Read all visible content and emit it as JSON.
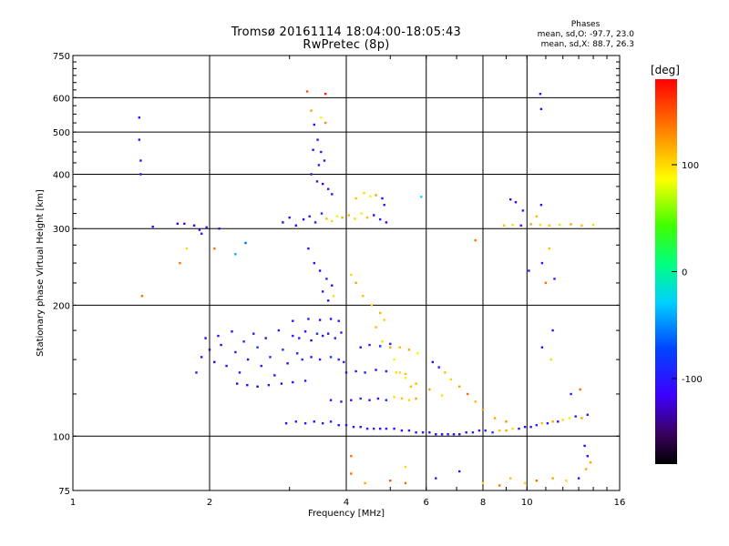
{
  "header": {
    "title": "Tromsø 20161114 18:04:00-18:05:43",
    "subtitle": "RwPretec (8p)"
  },
  "phases": {
    "label": "Phases",
    "o_stat": "mean, sd,O: -97.7, 23.0",
    "x_stat": "mean, sd,X: 88.7, 26.3"
  },
  "colorbar": {
    "title": "[deg]",
    "ticks": [
      {
        "value": 100,
        "label": "100"
      },
      {
        "value": 0,
        "label": "0"
      },
      {
        "value": -100,
        "label": "-100"
      }
    ],
    "range": [
      -180,
      180
    ]
  },
  "chart_data": {
    "type": "scatter",
    "title": "Tromsø 20161114 18:04:00-18:05:43",
    "subtitle": "RwPretec (8p)",
    "xlabel": "Frequency [MHz]",
    "ylabel": "Stationary phase Virtual Height [km]",
    "xscale": "log",
    "yscale": "log",
    "xlim": [
      1,
      16
    ],
    "ylim": [
      75,
      750
    ],
    "xticks": [
      {
        "value": 1,
        "label": "1"
      },
      {
        "value": 2,
        "label": "2"
      },
      {
        "value": 4,
        "label": "4"
      },
      {
        "value": 6,
        "label": "6"
      },
      {
        "value": 8,
        "label": "8"
      },
      {
        "value": 10,
        "label": "10"
      },
      {
        "value": 16,
        "label": "16"
      }
    ],
    "yticks": [
      {
        "value": 75,
        "label": "75"
      },
      {
        "value": 100,
        "label": "100"
      },
      {
        "value": 200,
        "label": "200"
      },
      {
        "value": 300,
        "label": "300"
      },
      {
        "value": 400,
        "label": "400"
      },
      {
        "value": 500,
        "label": "500"
      },
      {
        "value": 600,
        "label": "600"
      },
      {
        "value": 750,
        "label": "750"
      }
    ],
    "grid": true,
    "color_scale": "phase [deg], -180 to 180",
    "point_columns": [
      "freq_mhz",
      "height_km",
      "phase_deg"
    ],
    "points": [
      [
        1.4,
        540,
        -110
      ],
      [
        1.4,
        480,
        -110
      ],
      [
        1.41,
        430,
        -105
      ],
      [
        1.41,
        400,
        -110
      ],
      [
        1.42,
        210,
        140
      ],
      [
        1.5,
        303,
        -110
      ],
      [
        1.7,
        308,
        -120
      ],
      [
        1.76,
        308,
        -110
      ],
      [
        1.85,
        305,
        -130
      ],
      [
        1.9,
        298,
        -110
      ],
      [
        1.92,
        292,
        -100
      ],
      [
        1.97,
        302,
        -110
      ],
      [
        2.1,
        300,
        -100
      ],
      [
        1.72,
        250,
        140
      ],
      [
        1.78,
        270,
        100
      ],
      [
        2.05,
        270,
        140
      ],
      [
        2.28,
        262,
        -40
      ],
      [
        2.4,
        278,
        -60
      ],
      [
        1.87,
        140,
        -100
      ],
      [
        1.92,
        152,
        -110
      ],
      [
        1.96,
        168,
        -120
      ],
      [
        2.0,
        158,
        -130
      ],
      [
        2.05,
        148,
        -120
      ],
      [
        2.09,
        170,
        -110
      ],
      [
        2.12,
        162,
        -125
      ],
      [
        2.18,
        145,
        -110
      ],
      [
        2.24,
        174,
        -115
      ],
      [
        2.28,
        156,
        -100
      ],
      [
        2.33,
        140,
        -110
      ],
      [
        2.38,
        165,
        -90
      ],
      [
        2.43,
        150,
        -105
      ],
      [
        2.5,
        172,
        -100
      ],
      [
        2.55,
        160,
        -80
      ],
      [
        2.6,
        145,
        -100
      ],
      [
        2.66,
        168,
        -115
      ],
      [
        2.72,
        152,
        -90
      ],
      [
        2.78,
        138,
        -110
      ],
      [
        2.84,
        175,
        -100
      ],
      [
        2.9,
        158,
        -85
      ],
      [
        2.97,
        147,
        -120
      ],
      [
        3.05,
        170,
        -100
      ],
      [
        3.12,
        155,
        -95
      ],
      [
        2.3,
        132,
        -125
      ],
      [
        2.42,
        131,
        -120
      ],
      [
        2.55,
        130,
        -130
      ],
      [
        2.7,
        131,
        -110
      ],
      [
        2.88,
        132,
        -120
      ],
      [
        3.05,
        133,
        -110
      ],
      [
        3.25,
        134,
        -100
      ],
      [
        3.15,
        168,
        -100
      ],
      [
        3.25,
        174,
        -110
      ],
      [
        3.35,
        166,
        -120
      ],
      [
        3.45,
        172,
        -90
      ],
      [
        3.55,
        170,
        -100
      ],
      [
        3.65,
        172,
        -110
      ],
      [
        3.78,
        168,
        -95
      ],
      [
        3.9,
        173,
        -100
      ],
      [
        3.2,
        150,
        -90
      ],
      [
        3.35,
        152,
        -110
      ],
      [
        3.5,
        150,
        -100
      ],
      [
        3.7,
        152,
        -80
      ],
      [
        3.85,
        150,
        -90
      ],
      [
        3.95,
        148,
        -100
      ],
      [
        3.05,
        184,
        -110
      ],
      [
        3.3,
        186,
        -100
      ],
      [
        3.5,
        185,
        -120
      ],
      [
        3.7,
        186,
        -110
      ],
      [
        3.85,
        184,
        -105
      ],
      [
        2.9,
        310,
        -120
      ],
      [
        3.0,
        318,
        -115
      ],
      [
        3.1,
        305,
        -110
      ],
      [
        3.22,
        315,
        -120
      ],
      [
        3.32,
        320,
        -100
      ],
      [
        3.42,
        310,
        -105
      ],
      [
        3.53,
        325,
        -90
      ],
      [
        3.62,
        316,
        110
      ],
      [
        3.72,
        312,
        100
      ],
      [
        3.82,
        320,
        80
      ],
      [
        3.92,
        318,
        120
      ],
      [
        4.05,
        322,
        115
      ],
      [
        4.18,
        316,
        100
      ],
      [
        4.32,
        325,
        95
      ],
      [
        4.45,
        318,
        110
      ],
      [
        4.6,
        322,
        -110
      ],
      [
        4.75,
        315,
        -100
      ],
      [
        4.9,
        310,
        -120
      ],
      [
        4.2,
        352,
        110
      ],
      [
        4.38,
        362,
        100
      ],
      [
        4.52,
        356,
        80
      ],
      [
        4.65,
        358,
        120
      ],
      [
        4.8,
        352,
        -110
      ],
      [
        4.85,
        340,
        -100
      ],
      [
        3.35,
        560,
        120
      ],
      [
        3.4,
        520,
        -110
      ],
      [
        3.46,
        480,
        -100
      ],
      [
        3.52,
        450,
        -105
      ],
      [
        3.58,
        430,
        -110
      ],
      [
        3.52,
        540,
        90
      ],
      [
        3.6,
        525,
        130
      ],
      [
        3.28,
        620,
        150
      ],
      [
        3.6,
        612,
        170
      ],
      [
        3.35,
        400,
        -110
      ],
      [
        3.45,
        385,
        -100
      ],
      [
        3.55,
        380,
        -120
      ],
      [
        3.65,
        370,
        -95
      ],
      [
        3.72,
        360,
        -110
      ],
      [
        3.38,
        455,
        -115
      ],
      [
        3.48,
        420,
        -100
      ],
      [
        3.3,
        270,
        -110
      ],
      [
        3.4,
        250,
        -100
      ],
      [
        3.5,
        240,
        -120
      ],
      [
        3.62,
        230,
        -90
      ],
      [
        3.72,
        222,
        -110
      ],
      [
        3.55,
        215,
        -100
      ],
      [
        3.65,
        205,
        -110
      ],
      [
        3.75,
        210,
        100
      ],
      [
        4.1,
        235,
        100
      ],
      [
        4.2,
        225,
        120
      ],
      [
        4.35,
        210,
        110
      ],
      [
        4.55,
        200,
        100
      ],
      [
        4.75,
        192,
        115
      ],
      [
        4.85,
        185,
        105
      ],
      [
        4.65,
        178,
        110
      ],
      [
        4.8,
        165,
        100
      ],
      [
        5.0,
        160,
        120
      ],
      [
        5.1,
        150,
        80
      ],
      [
        5.25,
        140,
        100
      ],
      [
        5.4,
        136,
        90
      ],
      [
        5.55,
        130,
        110
      ],
      [
        5.7,
        132,
        100
      ],
      [
        3.7,
        121,
        -105
      ],
      [
        3.9,
        120,
        -100
      ],
      [
        4.1,
        121,
        -110
      ],
      [
        4.3,
        122,
        -95
      ],
      [
        4.5,
        121,
        -100
      ],
      [
        4.7,
        122,
        -110
      ],
      [
        4.9,
        121,
        -90
      ],
      [
        5.1,
        123,
        100
      ],
      [
        5.3,
        122,
        110
      ],
      [
        5.5,
        121,
        100
      ],
      [
        5.7,
        122,
        120
      ],
      [
        4.0,
        140,
        -110
      ],
      [
        4.2,
        141,
        -100
      ],
      [
        4.4,
        140,
        -95
      ],
      [
        4.65,
        142,
        -110
      ],
      [
        4.9,
        141,
        -100
      ],
      [
        5.15,
        140,
        100
      ],
      [
        5.4,
        139,
        110
      ],
      [
        4.3,
        160,
        -110
      ],
      [
        4.5,
        162,
        -100
      ],
      [
        4.75,
        161,
        -90
      ],
      [
        5.0,
        163,
        -105
      ],
      [
        5.25,
        160,
        110
      ],
      [
        5.5,
        158,
        120
      ],
      [
        5.75,
        155,
        90
      ],
      [
        6.2,
        148,
        -110
      ],
      [
        6.4,
        144,
        -100
      ],
      [
        6.6,
        140,
        110
      ],
      [
        6.8,
        135,
        100
      ],
      [
        7.1,
        130,
        120
      ],
      [
        7.4,
        125,
        140
      ],
      [
        7.7,
        120,
        110
      ],
      [
        8.0,
        115,
        120
      ],
      [
        8.5,
        110,
        120
      ],
      [
        9.0,
        108,
        130
      ],
      [
        5.7,
        132,
        110
      ],
      [
        6.1,
        128,
        120
      ],
      [
        6.5,
        124,
        100
      ],
      [
        2.95,
        107,
        -110
      ],
      [
        3.1,
        108,
        -100
      ],
      [
        3.25,
        107,
        -105
      ],
      [
        3.4,
        108,
        -110
      ],
      [
        3.55,
        107,
        -100
      ],
      [
        3.7,
        108,
        -95
      ],
      [
        3.85,
        106,
        -110
      ],
      [
        4.0,
        106,
        -100
      ],
      [
        4.15,
        105,
        -105
      ],
      [
        4.3,
        105,
        -110
      ],
      [
        4.45,
        104,
        -100
      ],
      [
        4.6,
        104,
        -95
      ],
      [
        4.75,
        104,
        -110
      ],
      [
        4.9,
        104,
        -100
      ],
      [
        5.1,
        104,
        -105
      ],
      [
        5.3,
        103,
        -110
      ],
      [
        5.5,
        103,
        -100
      ],
      [
        5.7,
        102,
        -100
      ],
      [
        5.9,
        102,
        -110
      ],
      [
        6.1,
        102,
        -105
      ],
      [
        6.3,
        101,
        -100
      ],
      [
        6.5,
        101,
        -110
      ],
      [
        6.7,
        101,
        -100
      ],
      [
        6.9,
        101,
        -105
      ],
      [
        7.1,
        101,
        -110
      ],
      [
        7.35,
        102,
        -100
      ],
      [
        7.6,
        102,
        -95
      ],
      [
        7.85,
        103,
        -110
      ],
      [
        8.1,
        103,
        -100
      ],
      [
        8.4,
        102,
        -80
      ],
      [
        8.7,
        103,
        110
      ],
      [
        9.0,
        103,
        120
      ],
      [
        9.3,
        104,
        100
      ],
      [
        9.6,
        104,
        -100
      ],
      [
        9.9,
        105,
        -110
      ],
      [
        10.2,
        105,
        -100
      ],
      [
        10.5,
        106,
        -90
      ],
      [
        10.8,
        107,
        110
      ],
      [
        11.1,
        107,
        -100
      ],
      [
        11.4,
        108,
        120
      ],
      [
        11.7,
        108,
        -110
      ],
      [
        12.0,
        109,
        100
      ],
      [
        12.4,
        110,
        80
      ],
      [
        12.8,
        111,
        -100
      ],
      [
        13.2,
        110,
        120
      ],
      [
        13.6,
        112,
        -100
      ],
      [
        8.9,
        305,
        110
      ],
      [
        9.3,
        306,
        100
      ],
      [
        9.7,
        305,
        -110
      ],
      [
        10.2,
        307,
        120
      ],
      [
        10.7,
        306,
        100
      ],
      [
        11.2,
        305,
        110
      ],
      [
        11.8,
        306,
        100
      ],
      [
        12.5,
        307,
        120
      ],
      [
        13.2,
        305,
        110
      ],
      [
        14.0,
        306,
        100
      ],
      [
        9.2,
        350,
        -110
      ],
      [
        9.8,
        330,
        -100
      ],
      [
        10.5,
        320,
        110
      ],
      [
        10.1,
        240,
        -110
      ],
      [
        10.8,
        250,
        -100
      ],
      [
        11.2,
        270,
        110
      ],
      [
        11.5,
        230,
        -100
      ],
      [
        10.8,
        160,
        -110
      ],
      [
        11.3,
        150,
        100
      ],
      [
        10.7,
        612,
        -110
      ],
      [
        10.75,
        565,
        -110
      ],
      [
        9.45,
        345,
        -110
      ],
      [
        10.75,
        340,
        -110
      ],
      [
        11.0,
        225,
        140
      ],
      [
        11.4,
        175,
        -100
      ],
      [
        12.5,
        125,
        -100
      ],
      [
        13.1,
        128,
        140
      ],
      [
        13.4,
        95,
        -120
      ],
      [
        13.6,
        90,
        -110
      ],
      [
        13.8,
        87,
        120
      ],
      [
        4.1,
        82,
        140
      ],
      [
        4.4,
        78,
        120
      ],
      [
        5.0,
        79,
        150
      ],
      [
        5.4,
        78,
        140
      ],
      [
        6.3,
        80,
        -100
      ],
      [
        7.1,
        83,
        -100
      ],
      [
        8.0,
        78,
        100
      ],
      [
        8.7,
        77,
        140
      ],
      [
        9.2,
        80,
        110
      ],
      [
        9.9,
        78,
        100
      ],
      [
        10.5,
        79,
        140
      ],
      [
        11.4,
        80,
        120
      ],
      [
        12.2,
        79,
        100
      ],
      [
        13.0,
        80,
        -110
      ],
      [
        13.5,
        84,
        120
      ],
      [
        5.85,
        355,
        -20
      ],
      [
        4.1,
        90,
        140
      ],
      [
        5.4,
        85,
        100
      ],
      [
        7.7,
        282,
        140
      ]
    ]
  }
}
